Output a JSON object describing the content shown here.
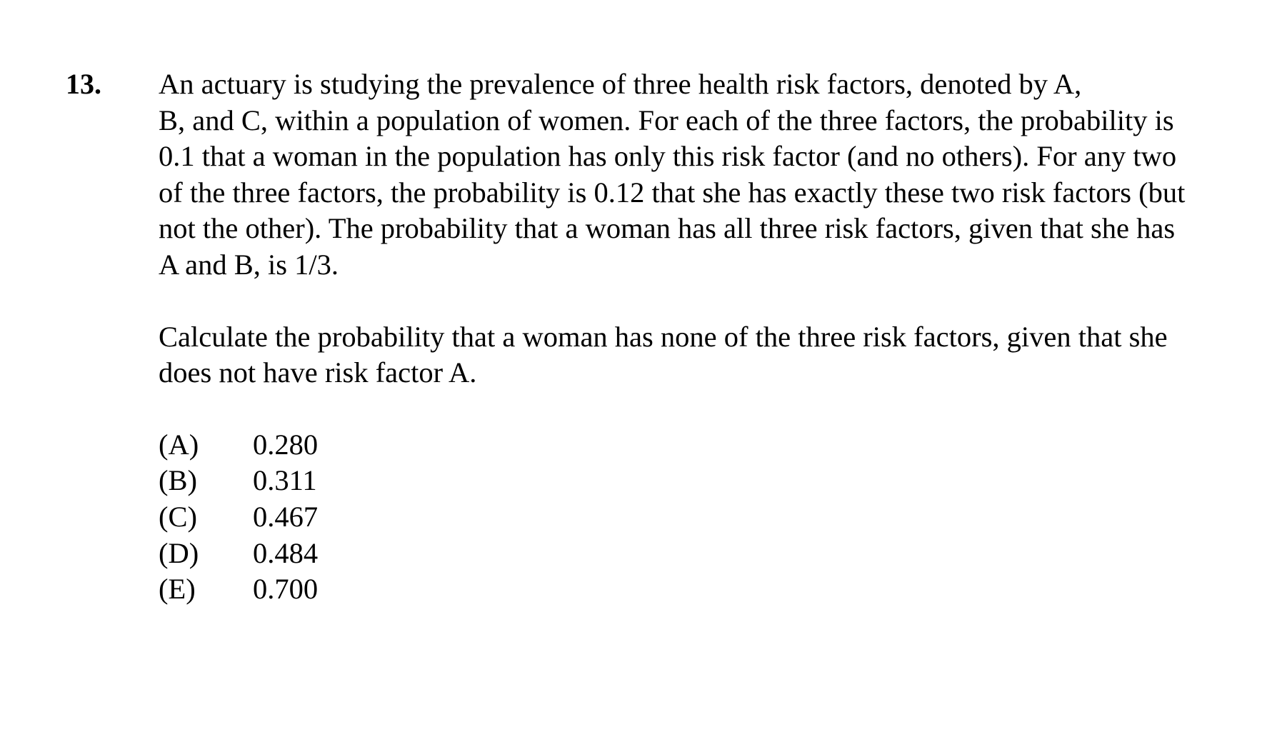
{
  "question": {
    "number": "13.",
    "stem_lines": [
      "An actuary is studying the prevalence of three health risk factors, denoted by A,",
      "B, and C, within a population of women.  For each of the three factors, the probability is",
      "0.1 that a woman in the population has only this risk factor (and no others).  For any two",
      "of the three factors, the probability is 0.12 that she has exactly these two risk factors (but",
      "not the other).  The probability that a woman has all three risk factors, given that she has",
      "A and B, is 1/3."
    ],
    "prompt_lines": [
      "Calculate the probability that a woman has none of the three risk factors, given that she",
      "does not have risk factor A."
    ],
    "choices": [
      {
        "label": "(A)",
        "value": "0.280"
      },
      {
        "label": "(B)",
        "value": "0.311"
      },
      {
        "label": "(C)",
        "value": "0.467"
      },
      {
        "label": "(D)",
        "value": "0.484"
      },
      {
        "label": "(E)",
        "value": "0.700"
      }
    ]
  }
}
